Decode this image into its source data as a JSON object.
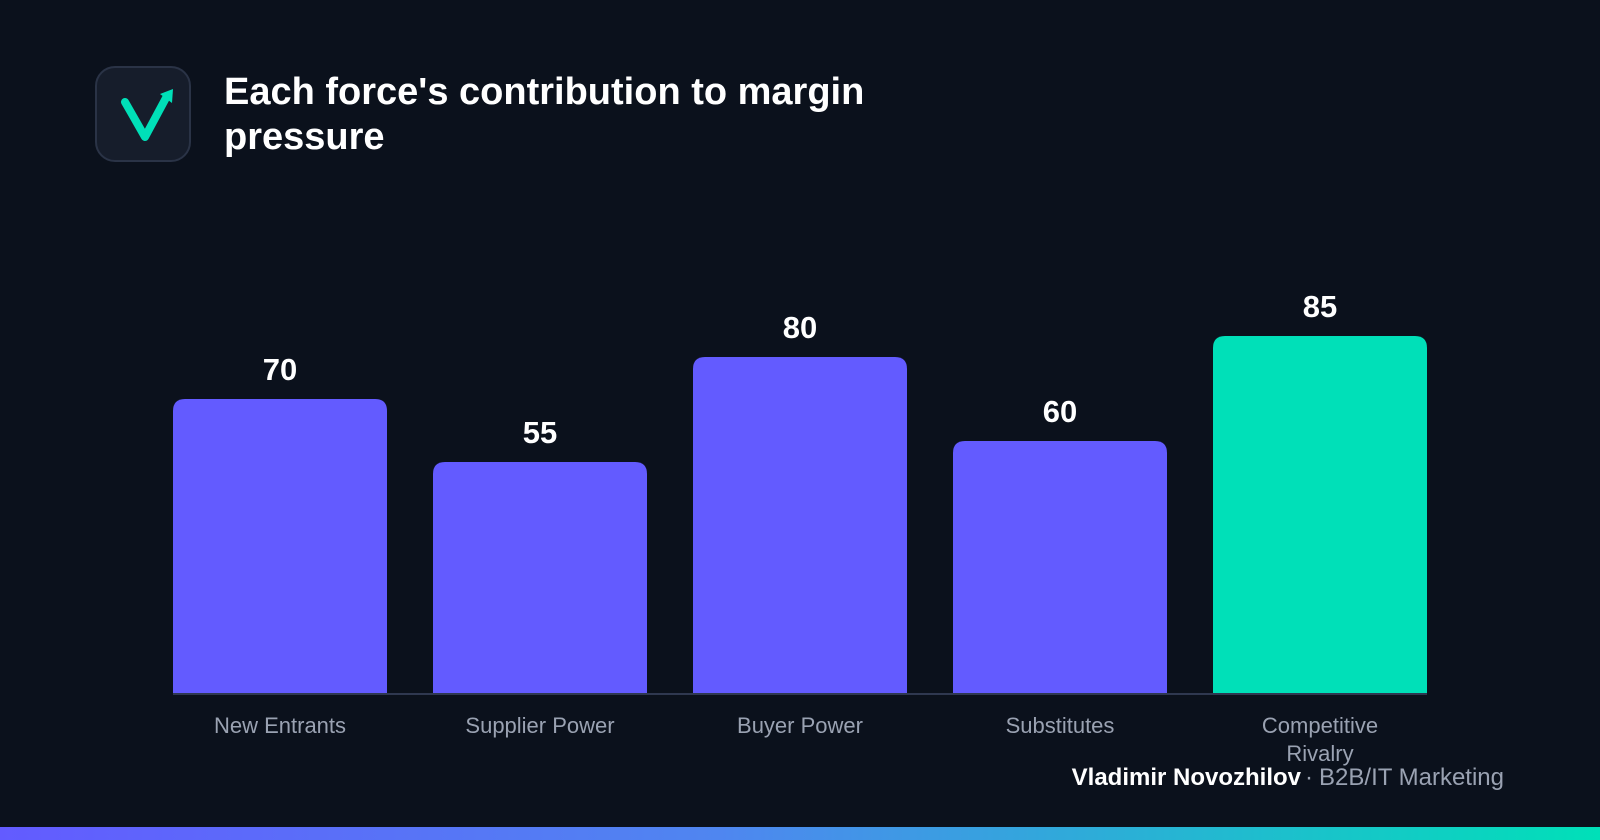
{
  "header": {
    "title": "Each force's contribution to margin pressure"
  },
  "logo": {
    "icon": "check-arrow-icon",
    "color": "#00e0b8"
  },
  "chart_data": {
    "type": "bar",
    "title": "Each force's contribution to margin pressure",
    "categories": [
      "New Entrants",
      "Supplier Power",
      "Buyer Power",
      "Substitutes",
      "Competitive Rivalry"
    ],
    "values": [
      70,
      55,
      80,
      60,
      85
    ],
    "value_labels": [
      "70",
      "55",
      "80",
      "60",
      "85"
    ],
    "ylim": [
      0,
      100
    ],
    "xlabel": "",
    "ylabel": "",
    "grid": false,
    "legend": "none",
    "highlight_index": 4,
    "colors": {
      "bar": "#635bff",
      "highlight": "#00e0b8",
      "baseline": "#2f3850"
    }
  },
  "footer": {
    "author": "Vladimir Novozhilov",
    "separator": "·",
    "role": "B2B/IT Marketing"
  }
}
